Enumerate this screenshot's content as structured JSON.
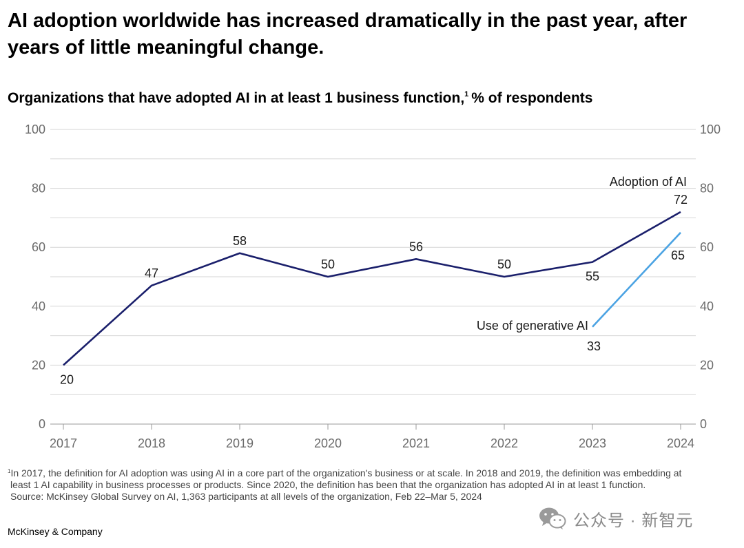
{
  "headline": {
    "line1": "AI adoption worldwide has increased dramatically in the past year, after",
    "line2": "years of little meaningful change."
  },
  "subtitle": {
    "bold": "Organizations that have adopted AI in at least 1 business function,",
    "sup": "1",
    "rest": "% of respondents"
  },
  "chart_data": {
    "type": "line",
    "x": [
      "2017",
      "2018",
      "2019",
      "2020",
      "2021",
      "2022",
      "2023",
      "2024"
    ],
    "ylim": [
      0,
      100
    ],
    "yticks": [
      "0",
      "20",
      "40",
      "60",
      "80",
      "100"
    ],
    "grid": true,
    "series": [
      {
        "name": "Adoption of AI",
        "color": "#1a1f6b",
        "x": [
          "2017",
          "2018",
          "2019",
          "2020",
          "2021",
          "2022",
          "2023",
          "2024"
        ],
        "values": [
          20,
          47,
          58,
          50,
          56,
          50,
          55,
          72
        ]
      },
      {
        "name": "Use of generative AI",
        "color": "#4ba3e3",
        "x": [
          "2023",
          "2024"
        ],
        "values": [
          33,
          65
        ]
      }
    ]
  },
  "footnote": {
    "sup": "1",
    "line1": "In 2017, the definition for AI adoption was using AI in a core part of the organization's business or at scale. In 2018 and 2019, the definition was embedding at",
    "line2": "least 1 AI capability in business processes or products. Since 2020, the definition has been that the organization has adopted AI in at least 1 function.",
    "line3": "Source: McKinsey Global Survey on AI, 1,363 participants at all levels of the organization, Feb 22–Mar 5, 2024"
  },
  "watermark": {
    "text": "公众号 · 新智元",
    "icon": "wechat-icon"
  },
  "brand": "McKinsey & Company"
}
